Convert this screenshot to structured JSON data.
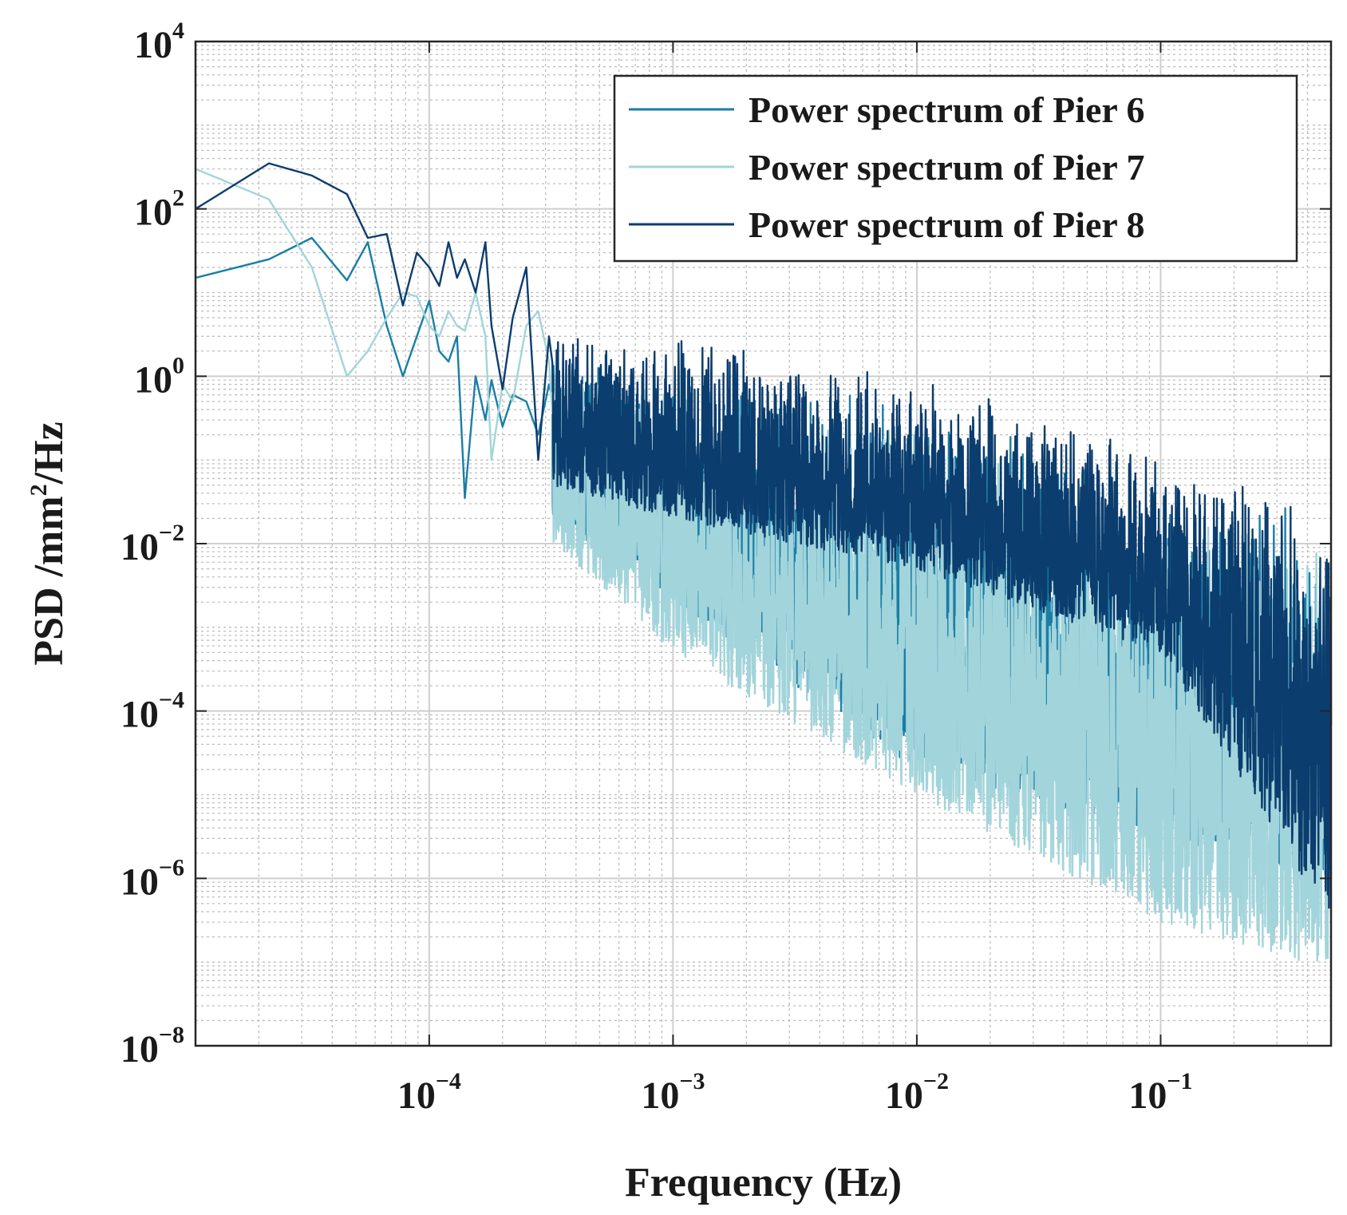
{
  "chart_data": {
    "type": "line",
    "title": "",
    "xlabel": "Frequency (Hz)",
    "ylabel": "PSD /mm²/Hz",
    "ylabel_parts": {
      "pre": "PSD /mm",
      "sup": "2",
      "post": "/Hz"
    },
    "xscale": "log",
    "yscale": "log",
    "xlim": [
      1.1e-05,
      0.5
    ],
    "ylim": [
      1e-08,
      10000.0
    ],
    "grid": true,
    "minor_grid": true,
    "legend_position": "top-right",
    "x_ticks": [
      {
        "value": 0.0001,
        "base": "10",
        "exp": "−4"
      },
      {
        "value": 0.001,
        "base": "10",
        "exp": "−3"
      },
      {
        "value": 0.01,
        "base": "10",
        "exp": "−2"
      },
      {
        "value": 0.1,
        "base": "10",
        "exp": "−1"
      }
    ],
    "y_ticks": [
      {
        "value": 1e-08,
        "base": "10",
        "exp": "−8"
      },
      {
        "value": 1e-06,
        "base": "10",
        "exp": "−6"
      },
      {
        "value": 0.0001,
        "base": "10",
        "exp": "−4"
      },
      {
        "value": 0.01,
        "base": "10",
        "exp": "−2"
      },
      {
        "value": 1,
        "base": "10",
        "exp": "0"
      },
      {
        "value": 100,
        "base": "10",
        "exp": "2"
      },
      {
        "value": 10000,
        "base": "10",
        "exp": "4"
      }
    ],
    "series": [
      {
        "name": "Power spectrum of Pier 6",
        "color": "#1a7ea6",
        "x": [
          1.1e-05,
          2.2e-05,
          3.3e-05,
          4.6e-05,
          5.6e-05,
          6.7e-05,
          7.8e-05,
          8.9e-05,
          0.0001,
          0.00011,
          0.00012,
          0.00013,
          0.00014,
          0.000155,
          0.00017,
          0.00018,
          0.0002,
          0.00022,
          0.00025,
          0.00028,
          0.00031
        ],
        "y": [
          15,
          25,
          45,
          14,
          40,
          4,
          1.0,
          3,
          8,
          2,
          1.5,
          3,
          0.035,
          1.0,
          0.3,
          0.9,
          0.25,
          0.6,
          0.5,
          0.2,
          0.8
        ],
        "trend": {
          "start_f": 0.00032,
          "high": [
            [
              0.00032,
              2.0
            ],
            [
              0.001,
              1.0
            ],
            [
              0.01,
              0.5
            ],
            [
              0.05,
              0.1
            ],
            [
              0.5,
              0.02
            ]
          ],
          "low": [
            [
              0.00032,
              0.02
            ],
            [
              0.001,
              0.002
            ],
            [
              0.01,
              2e-05
            ],
            [
              0.1,
              3e-06
            ],
            [
              0.5,
              1e-06
            ]
          ]
        }
      },
      {
        "name": "Power spectrum of Pier 7",
        "color": "#a2d4db",
        "x": [
          1.1e-05,
          2.2e-05,
          3.3e-05,
          4.6e-05,
          5.6e-05,
          6.7e-05,
          7.8e-05,
          8.9e-05,
          0.0001,
          0.00011,
          0.00012,
          0.00013,
          0.00014,
          0.000155,
          0.00017,
          0.00018,
          0.0002,
          0.00022,
          0.00025,
          0.00028,
          0.00031
        ],
        "y": [
          300,
          130,
          20,
          1.0,
          2,
          5,
          10,
          9,
          4,
          3,
          6,
          4,
          3.5,
          10,
          3,
          0.1,
          0.8,
          0.5,
          4,
          6,
          1.5
        ],
        "trend": {
          "start_f": 0.00032,
          "high": [
            [
              0.00032,
              1.5
            ],
            [
              0.001,
              0.8
            ],
            [
              0.01,
              0.3
            ],
            [
              0.05,
              0.08
            ],
            [
              0.5,
              0.01
            ]
          ],
          "low": [
            [
              0.00032,
              0.01
            ],
            [
              0.001,
              0.0005
            ],
            [
              0.01,
              1e-05
            ],
            [
              0.1,
              3e-07
            ],
            [
              0.5,
              8e-08
            ]
          ]
        }
      },
      {
        "name": "Power spectrum of Pier 8",
        "color": "#0b3d6e",
        "x": [
          1.1e-05,
          2.2e-05,
          3.3e-05,
          4.6e-05,
          5.6e-05,
          6.7e-05,
          7.8e-05,
          8.9e-05,
          0.0001,
          0.00011,
          0.00012,
          0.00013,
          0.00014,
          0.000155,
          0.00017,
          0.00018,
          0.0002,
          0.00022,
          0.00025,
          0.00028,
          0.00031
        ],
        "y": [
          100,
          350,
          250,
          150,
          45,
          50,
          7,
          30,
          20,
          12,
          40,
          15,
          25,
          10,
          40,
          4,
          0.7,
          5,
          20,
          0.1,
          3
        ],
        "trend": {
          "start_f": 0.00032,
          "high": [
            [
              0.00032,
              6.0
            ],
            [
              0.001,
              3.0
            ],
            [
              0.01,
              1.0
            ],
            [
              0.04,
              0.3
            ],
            [
              0.5,
              0.04
            ]
          ],
          "low": [
            [
              0.00032,
              0.05
            ],
            [
              0.001,
              0.02
            ],
            [
              0.01,
              0.005
            ],
            [
              0.1,
              0.0005
            ],
            [
              0.5,
              3e-07
            ]
          ]
        }
      }
    ]
  }
}
